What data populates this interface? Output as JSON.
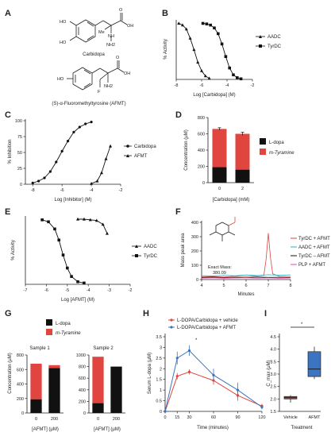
{
  "structures": {
    "carbidopa": {
      "name": "Carbidopa",
      "atoms": [
        "HO",
        "HO",
        "Me",
        "NH",
        "NH2",
        "OH",
        "O"
      ]
    },
    "afmt": {
      "name": "(S)-α-Fluoromethyltyrosine (AFMT)",
      "atoms": [
        "HO",
        "F",
        "NH2",
        "OH",
        "O"
      ]
    }
  },
  "chart_data": [
    {
      "id": "B",
      "type": "line",
      "xlabel": "Log [Carbidopa] (M)",
      "ylabel": "% Activity",
      "xlim": [
        -8,
        -2
      ],
      "ylim": [
        0,
        100
      ],
      "xticks": [
        -8,
        -6,
        -4,
        -2
      ],
      "yticks": [],
      "legend_position": "right",
      "series": [
        {
          "name": "AADC",
          "color": "#111111",
          "marker": "triangle",
          "x": [
            -7.8,
            -7.5,
            -7.2,
            -6.9,
            -6.6,
            -6.3,
            -6.0,
            -5.7,
            -5.4
          ],
          "y": [
            98,
            95,
            88,
            72,
            52,
            30,
            15,
            6,
            2
          ]
        },
        {
          "name": "TyrDC",
          "color": "#111111",
          "marker": "square",
          "x": [
            -5.9,
            -5.6,
            -5.3,
            -5.0,
            -4.7,
            -4.4,
            -4.1,
            -3.8,
            -3.5,
            -3.2,
            -2.9
          ],
          "y": [
            98,
            97,
            95,
            90,
            80,
            62,
            40,
            20,
            8,
            3,
            1
          ]
        }
      ]
    },
    {
      "id": "C",
      "type": "line",
      "xlabel": "Log [Inhibitor] (M)",
      "ylabel": "% Inhibition",
      "xlim": [
        -8.5,
        -2
      ],
      "ylim": [
        0,
        100
      ],
      "xticks": [
        -8,
        -6,
        -4,
        -2
      ],
      "yticks": [
        0,
        25,
        50,
        75,
        100
      ],
      "legend_position": "right",
      "series": [
        {
          "name": "Carbidopa",
          "color": "#111111",
          "marker": "dot",
          "x": [
            -8.0,
            -7.6,
            -7.2,
            -6.8,
            -6.4,
            -6.0,
            -5.6,
            -5.2,
            -4.8,
            -4.4,
            -4.0
          ],
          "y": [
            2,
            5,
            10,
            20,
            35,
            52,
            68,
            82,
            90,
            95,
            98
          ]
        },
        {
          "name": "AFMT",
          "color": "#111111",
          "marker": "triangle",
          "x": [
            -4.0,
            -3.6,
            -3.3,
            -3.0,
            -2.7
          ],
          "y": [
            1,
            5,
            18,
            40,
            60
          ]
        }
      ]
    },
    {
      "id": "D",
      "type": "bar",
      "xlabel": "[Carbidopa] (mM)",
      "ylabel": "Concentration (μM)",
      "ylim": [
        0,
        800
      ],
      "yticks": [
        0,
        200,
        400,
        600,
        800
      ],
      "categories": [
        "0",
        "2"
      ],
      "legend_position": "right",
      "series": [
        {
          "name": "L-dopa",
          "color": "#111111",
          "values": [
            190,
            160
          ]
        },
        {
          "name": "m-Tyramine",
          "color": "#e0453f",
          "values": [
            470,
            440
          ]
        }
      ],
      "error": [
        15,
        20
      ]
    },
    {
      "id": "E",
      "type": "line",
      "xlabel": "Log [AFMT] (M)",
      "ylabel": "% Activity",
      "xlim": [
        -7,
        -2
      ],
      "ylim": [
        0,
        100
      ],
      "xticks": [
        -7,
        -6,
        -5,
        -4,
        -3,
        -2
      ],
      "yticks": [],
      "legend_position": "right",
      "series": [
        {
          "name": "AADC",
          "color": "#111111",
          "marker": "triangle",
          "x": [
            -4.5,
            -4.2,
            -3.9,
            -3.6,
            -3.3,
            -3.1
          ],
          "y": [
            100,
            100,
            99,
            98,
            92,
            78
          ]
        },
        {
          "name": "TyrDC",
          "color": "#111111",
          "marker": "square",
          "x": [
            -6.2,
            -5.9,
            -5.6,
            -5.4,
            -5.2,
            -5.0,
            -4.8,
            -4.5,
            -4.2
          ],
          "y": [
            99,
            96,
            85,
            68,
            45,
            25,
            12,
            4,
            2
          ]
        }
      ]
    },
    {
      "id": "F",
      "type": "line",
      "xlabel": "Minutes",
      "ylabel": "Mass peak area",
      "xlim": [
        4,
        8
      ],
      "ylim": [
        0,
        400
      ],
      "xticks": [
        4,
        5,
        6,
        7,
        8
      ],
      "yticks": [
        0,
        100,
        200,
        300,
        400
      ],
      "annotations": [
        "Exact Mass:",
        "380.09"
      ],
      "legend_position": "right",
      "series": [
        {
          "name": "TyrDC + AFMT",
          "color": "#e0453f",
          "x": [
            4.0,
            4.5,
            5.0,
            5.5,
            6.0,
            6.5,
            6.8,
            6.9,
            7.0,
            7.1,
            7.2,
            7.5,
            8.0
          ],
          "y": [
            20,
            22,
            18,
            24,
            20,
            26,
            30,
            140,
            325,
            150,
            40,
            22,
            20
          ]
        },
        {
          "name": "AADC + AFMT",
          "color": "#2ab3c3",
          "x": [
            4.0,
            4.5,
            5.0,
            5.5,
            6.0,
            6.5,
            7.0,
            7.5,
            8.0
          ],
          "y": [
            28,
            25,
            30,
            26,
            32,
            28,
            34,
            30,
            32
          ]
        },
        {
          "name": "TyrDC – AFMT",
          "color": "#111111",
          "x": [
            4.0,
            4.5,
            5.0,
            5.5,
            6.0,
            6.5,
            7.0,
            7.5,
            8.0
          ],
          "y": [
            15,
            17,
            14,
            16,
            13,
            18,
            15,
            16,
            14
          ]
        },
        {
          "name": "PLP + AFMT",
          "color": "#d84fa8",
          "x": [
            4.0,
            4.5,
            5.0,
            5.5,
            6.0,
            6.5,
            7.0,
            7.5,
            8.0
          ],
          "y": [
            10,
            12,
            9,
            11,
            13,
            10,
            12,
            9,
            11
          ]
        }
      ]
    },
    {
      "id": "G",
      "type": "bar",
      "xlabel": "[AFMT] (μM)",
      "ylabel": "Concentration (μM)",
      "ylim": [
        0,
        1000
      ],
      "yticks": [
        0,
        200,
        400,
        600,
        800,
        1000
      ],
      "legend_position": "top",
      "panels": [
        {
          "title": "Sample 1",
          "categories": [
            "0",
            "200"
          ],
          "ymax": 800,
          "yticks": [
            0,
            200,
            400,
            600,
            800
          ],
          "series": [
            {
              "name": "L-dopa",
              "color": "#111111",
              "values": [
                190,
                620
              ]
            },
            {
              "name": "m-Tyramine",
              "color": "#e0453f",
              "values": [
                490,
                40
              ]
            }
          ]
        },
        {
          "title": "Sample 2",
          "categories": [
            "0",
            "200"
          ],
          "ymax": 1000,
          "yticks": [
            0,
            200,
            400,
            600,
            800,
            1000
          ],
          "series": [
            {
              "name": "L-dopa",
              "color": "#111111",
              "values": [
                170,
                800
              ]
            },
            {
              "name": "m-Tyramine",
              "color": "#e0453f",
              "values": [
                800,
                0
              ]
            }
          ]
        }
      ]
    },
    {
      "id": "H",
      "type": "line",
      "xlabel": "Time (minutes)",
      "ylabel": "Serum L-dopa (μM)",
      "xlim": [
        0,
        120
      ],
      "ylim": [
        0,
        3.5
      ],
      "xticks": [
        0,
        15,
        30,
        60,
        90,
        120
      ],
      "yticks": [
        0,
        0.5,
        1.0,
        1.5,
        2.0,
        2.5,
        3.0,
        3.5
      ],
      "legend_position": "top-left",
      "series": [
        {
          "name": "L-DOPA/Carbidopa + vehicle",
          "color": "#e0453f",
          "x": [
            0,
            15,
            30,
            60,
            90,
            120
          ],
          "y": [
            0,
            1.65,
            1.85,
            1.45,
            0.75,
            0.25
          ],
          "err": [
            0,
            0.15,
            0.12,
            0.2,
            0.25,
            0.1
          ]
        },
        {
          "name": "L-DOPA/Carbidopa + AFMT",
          "color": "#3c74c2",
          "x": [
            0,
            15,
            30,
            60,
            90,
            120
          ],
          "y": [
            0,
            2.5,
            2.85,
            1.7,
            1.0,
            0.2
          ],
          "err": [
            0,
            0.3,
            0.25,
            0.3,
            0.35,
            0.1
          ]
        }
      ],
      "annotations": [
        "*"
      ]
    },
    {
      "id": "I",
      "type": "box",
      "xlabel": "Treatment",
      "ylabel": "C_max (μM)",
      "ylim": [
        1.5,
        4.5
      ],
      "yticks": [
        1.5,
        2.0,
        2.5,
        3.0,
        3.5,
        4.0,
        4.5
      ],
      "categories": [
        "Vehicle",
        "AFMT"
      ],
      "boxes": [
        {
          "name": "Vehicle",
          "color": "#e0453f",
          "min": 1.85,
          "q1": 2.0,
          "median": 2.05,
          "q3": 2.1,
          "max": 2.15
        },
        {
          "name": "AFMT",
          "color": "#3c74c2",
          "min": 2.8,
          "q1": 2.9,
          "median": 3.2,
          "q3": 3.9,
          "max": 4.1
        }
      ],
      "annotations": [
        "*"
      ]
    }
  ]
}
